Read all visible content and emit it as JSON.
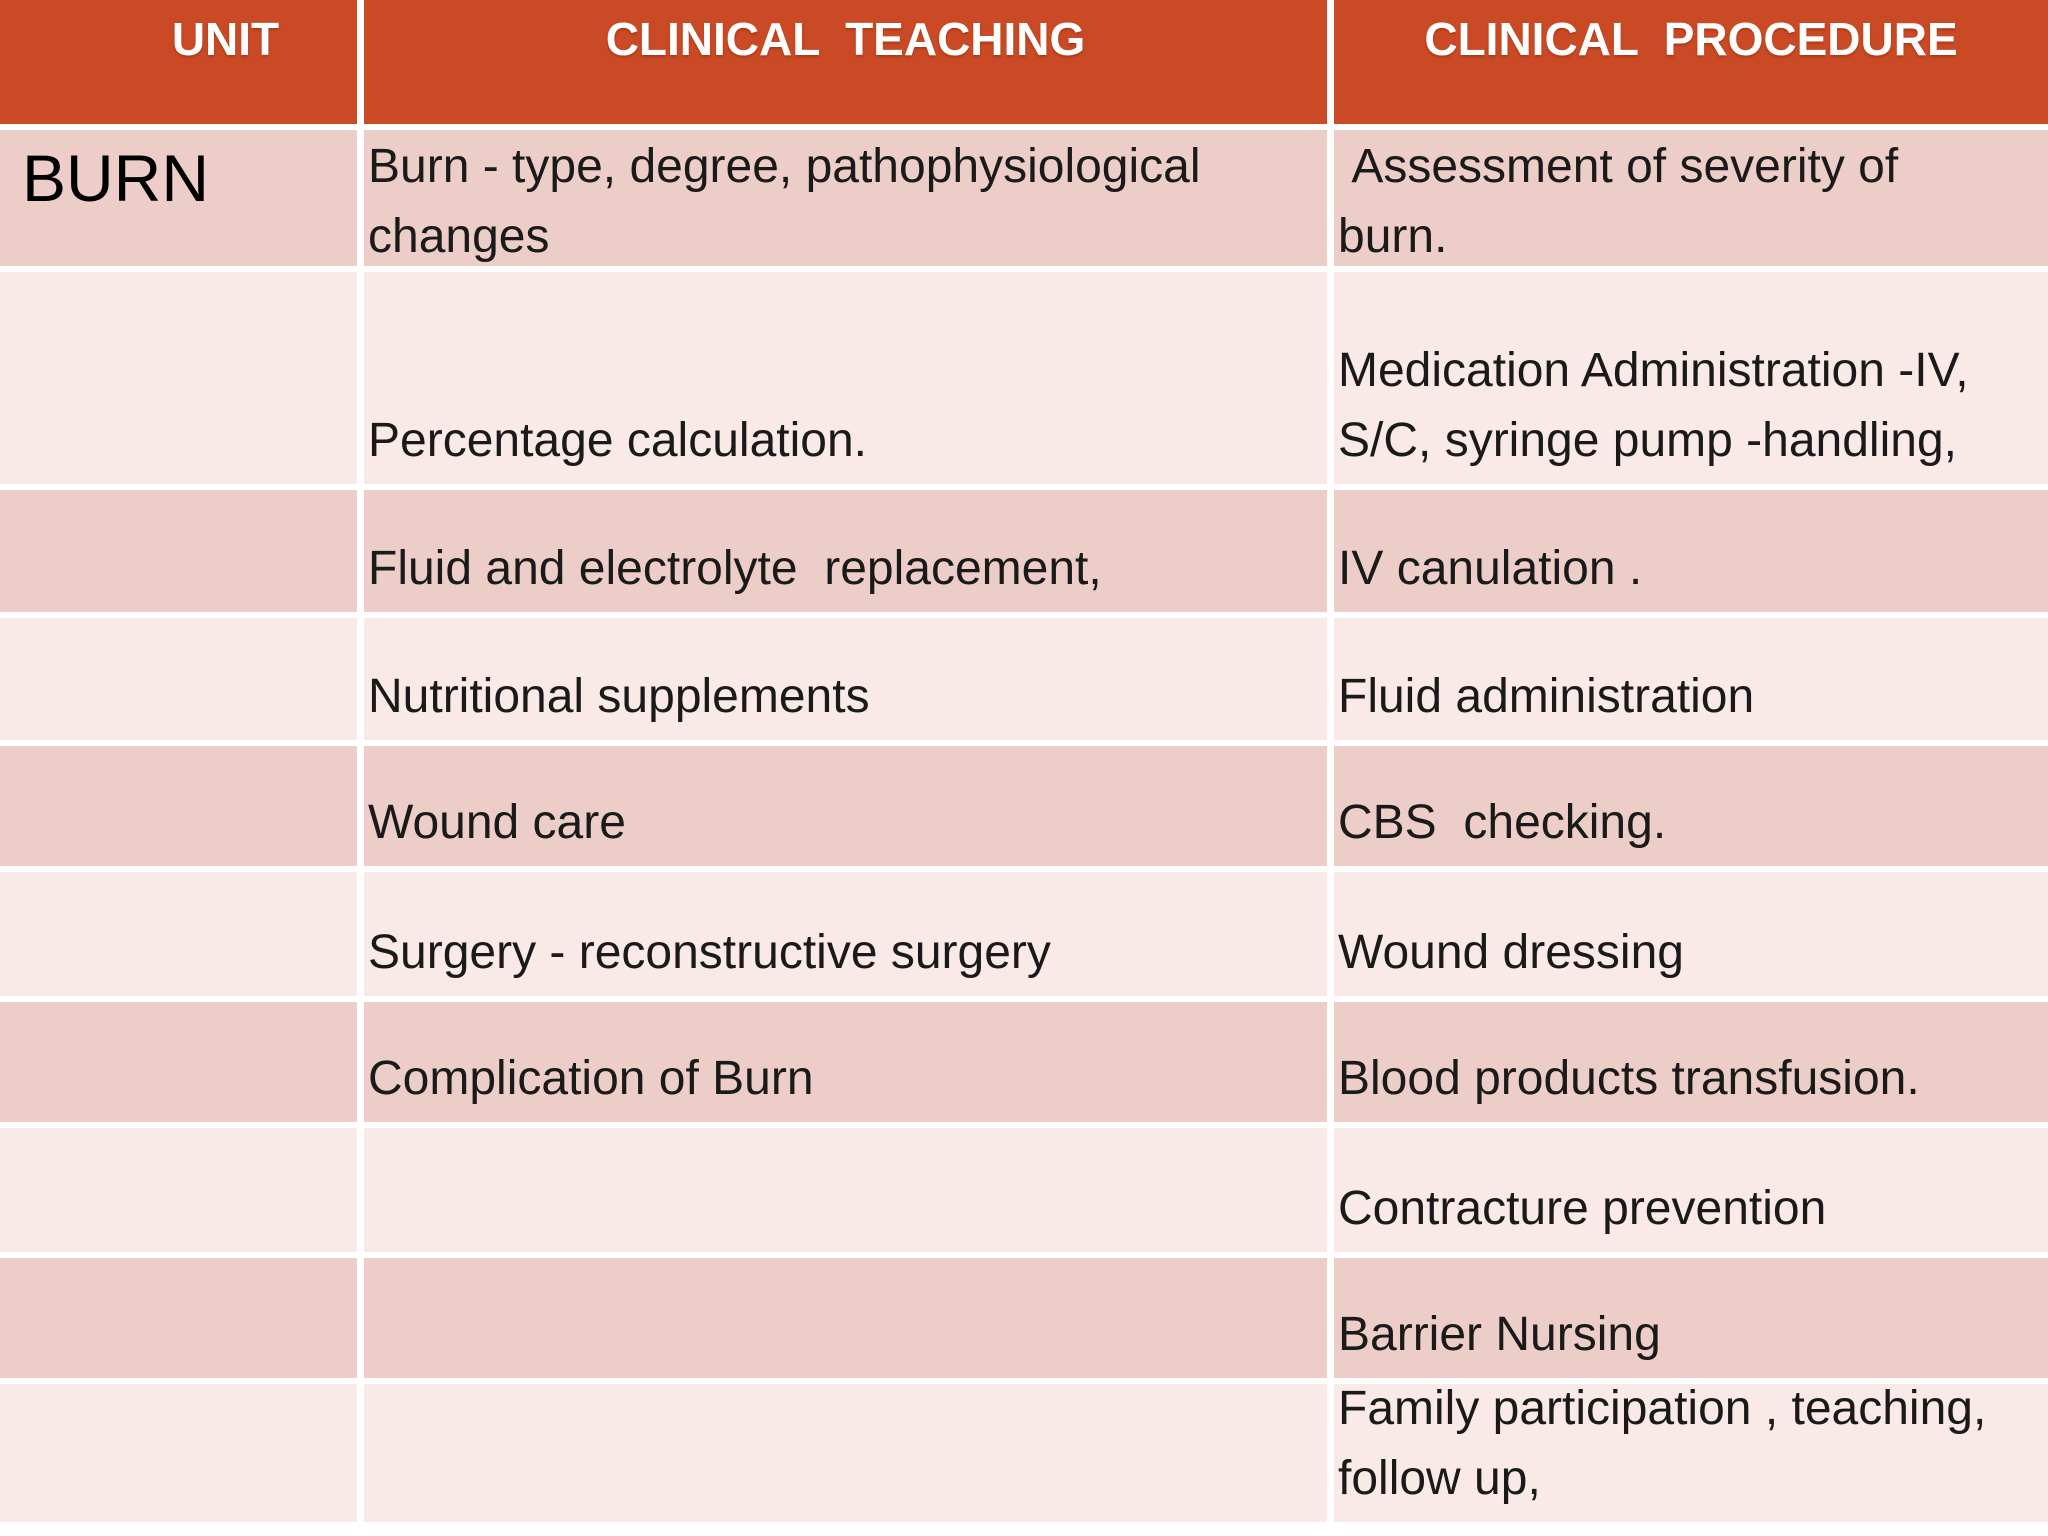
{
  "slide": {
    "colors": {
      "header_bg": "#c94a24",
      "header_text": "#ffffff",
      "row_dark": "#edcdc8",
      "row_light": "#f9eae8",
      "grid_line": "#ffffff",
      "body_text": "#1a1a1a"
    },
    "header": {
      "unit": "UNIT",
      "teaching": "CLINICAL  TEACHING",
      "procedure": "CLINICAL  PROCEDURE"
    },
    "rows": [
      {
        "unit": "BURN",
        "teaching": "Burn - type, degree, pathophysiological\nchanges",
        "procedure": " Assessment of severity of\nburn."
      },
      {
        "unit": "",
        "teaching": "Percentage calculation.",
        "procedure": "Medication Administration -IV,\nS/C, syringe pump -handling,"
      },
      {
        "unit": "",
        "teaching": "Fluid and electrolyte  replacement,",
        "procedure": "IV canulation ."
      },
      {
        "unit": "",
        "teaching": "Nutritional supplements",
        "procedure": "Fluid administration"
      },
      {
        "unit": "",
        "teaching": "Wound care",
        "procedure": "CBS  checking."
      },
      {
        "unit": "",
        "teaching": "Surgery - reconstructive surgery",
        "procedure": "Wound dressing"
      },
      {
        "unit": "",
        "teaching": "Complication of Burn",
        "procedure": "Blood products transfusion."
      },
      {
        "unit": "",
        "teaching": "",
        "procedure": "Contracture prevention"
      },
      {
        "unit": "",
        "teaching": "",
        "procedure": "Barrier Nursing"
      },
      {
        "unit": "",
        "teaching": "",
        "procedure": "Family participation , teaching,\nfollow up,"
      }
    ]
  }
}
